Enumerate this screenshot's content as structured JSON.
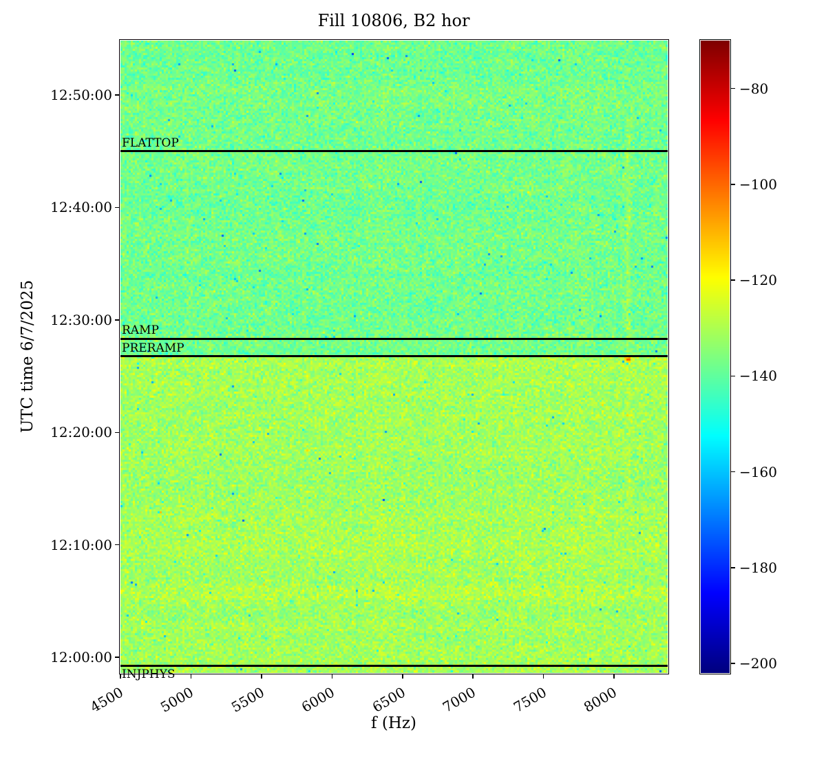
{
  "figure": {
    "title": "Fill 10806, B2 hor",
    "xlabel": "f (Hz)",
    "ylabel": "UTC time 6/7/2025"
  },
  "chart_data": {
    "type": "heatmap",
    "subtype": "spectrogram",
    "title": "Fill 10806, B2 hor",
    "xlabel": "f (Hz)",
    "ylabel": "UTC time 6/7/2025",
    "x_range_hz": [
      4500,
      8380
    ],
    "x_ticks": [
      4500,
      5000,
      5500,
      6000,
      6500,
      7000,
      7500,
      8000
    ],
    "time_range": [
      "11:58:36",
      "12:54:50"
    ],
    "y_ticks": [
      "12:00:00",
      "12:10:00",
      "12:20:00",
      "12:30:00",
      "12:40:00",
      "12:50:00"
    ],
    "colormap": "jet",
    "colorbar": {
      "vmin": -202,
      "vmax": -70,
      "ticks": [
        -80,
        -100,
        -120,
        -140,
        -160,
        -180,
        -200
      ]
    },
    "background": {
      "mean_db_above_preramp": -137.5,
      "mean_db_below_preramp": -131.5,
      "noise_std_db": 4.2
    },
    "events": [
      {
        "label": "FLATTOP",
        "time": "12:45:00",
        "label_position": "above"
      },
      {
        "label": "RAMP",
        "time": "12:28:20",
        "label_position": "above"
      },
      {
        "label": "PRERAMP",
        "time": "12:26:45",
        "label_position": "above"
      },
      {
        "label": "INJPHYS",
        "time": "11:59:15",
        "label_position": "below"
      }
    ],
    "features": [
      {
        "type": "vertical_streak",
        "f_hz": 8100,
        "time_span": [
          "12:20:00",
          "12:44:30"
        ],
        "approx_level_db": -128
      },
      {
        "type": "hotspot",
        "f_hz": 8100,
        "time": "12:27:00",
        "approx_level_db": -100
      }
    ]
  }
}
